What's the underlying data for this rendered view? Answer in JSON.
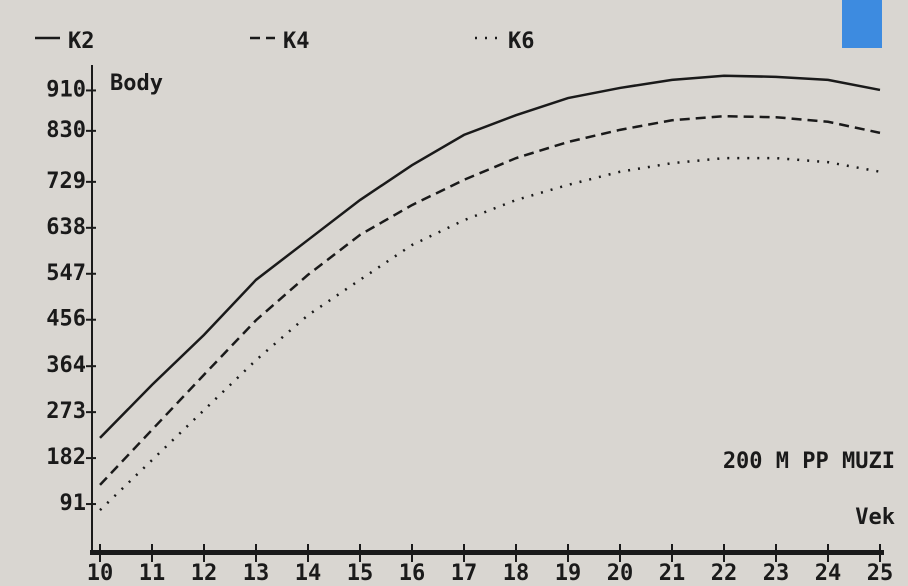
{
  "chart_data": {
    "type": "line",
    "y_label": "Body",
    "x_label": "Vek",
    "annotation": "200 M PP MUZI",
    "x": [
      10,
      11,
      12,
      13,
      14,
      15,
      16,
      17,
      18,
      19,
      20,
      21,
      22,
      23,
      24,
      25
    ],
    "series": [
      {
        "name": "K2",
        "color": "#1a1a1a",
        "style": "solid",
        "values": [
          222,
          327,
          426,
          535,
          614,
          693,
          762,
          822,
          861,
          895,
          915,
          931,
          939,
          937,
          931,
          911
        ]
      },
      {
        "name": "K4",
        "color": "#1a1a1a",
        "style": "dashed",
        "values": [
          129,
          238,
          347,
          455,
          545,
          624,
          683,
          733,
          776,
          808,
          832,
          851,
          859,
          857,
          848,
          826
        ]
      },
      {
        "name": "K6",
        "color": "#1a1a1a",
        "style": "dotted",
        "values": [
          79,
          178,
          277,
          376,
          465,
          535,
          604,
          653,
          693,
          723,
          749,
          766,
          776,
          776,
          768,
          749
        ]
      }
    ],
    "xlim": [
      10,
      25
    ],
    "xticks": [
      10,
      11,
      12,
      13,
      14,
      15,
      16,
      17,
      18,
      19,
      20,
      21,
      22,
      23,
      24,
      25
    ],
    "ylim": [
      0,
      1000
    ],
    "yticks": [
      91,
      182,
      273,
      364,
      456,
      547,
      638,
      729,
      830,
      910
    ],
    "grid": false
  }
}
